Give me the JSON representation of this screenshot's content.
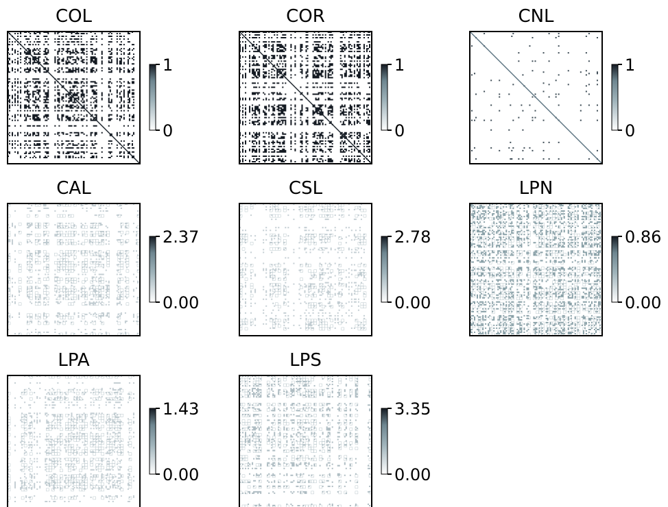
{
  "figure": {
    "description_colormap": "gray-blue-white (0 = white, max = near black)"
  },
  "chart_data": [
    {
      "type": "heatmap",
      "title": "COL",
      "colorbar": {
        "min": 0,
        "max": 1,
        "tick_labels": [
          "0",
          "1"
        ]
      },
      "density": "dense",
      "diagonal": true
    },
    {
      "type": "heatmap",
      "title": "COR",
      "colorbar": {
        "min": 0,
        "max": 1,
        "tick_labels": [
          "0",
          "1"
        ]
      },
      "density": "dense",
      "diagonal": true
    },
    {
      "type": "heatmap",
      "title": "CNL",
      "colorbar": {
        "min": 0,
        "max": 1,
        "tick_labels": [
          "0",
          "1"
        ]
      },
      "density": "sparse",
      "diagonal": true
    },
    {
      "type": "heatmap",
      "title": "CAL",
      "colorbar": {
        "min": 0.0,
        "max": 2.37,
        "tick_labels": [
          "0.00",
          "2.37"
        ]
      },
      "density": "grid-light",
      "diagonal": false
    },
    {
      "type": "heatmap",
      "title": "CSL",
      "colorbar": {
        "min": 0.0,
        "max": 2.78,
        "tick_labels": [
          "0.00",
          "2.78"
        ]
      },
      "density": "grid-light",
      "diagonal": false
    },
    {
      "type": "heatmap",
      "title": "LPN",
      "colorbar": {
        "min": 0.0,
        "max": 0.86,
        "tick_labels": [
          "0.00",
          "0.86"
        ]
      },
      "density": "speckled",
      "diagonal": false
    },
    {
      "type": "heatmap",
      "title": "LPA",
      "colorbar": {
        "min": 0.0,
        "max": 1.43,
        "tick_labels": [
          "0.00",
          "1.43"
        ]
      },
      "density": "grid-light",
      "diagonal": false
    },
    {
      "type": "heatmap",
      "title": "LPS",
      "colorbar": {
        "min": 0.0,
        "max": 3.35,
        "tick_labels": [
          "0.00",
          "3.35"
        ]
      },
      "density": "grid-medium",
      "diagonal": false
    }
  ],
  "colors": {
    "high": "#141a22",
    "mid": "#6e8690",
    "low": "#ffffff",
    "frame": "#000000"
  }
}
